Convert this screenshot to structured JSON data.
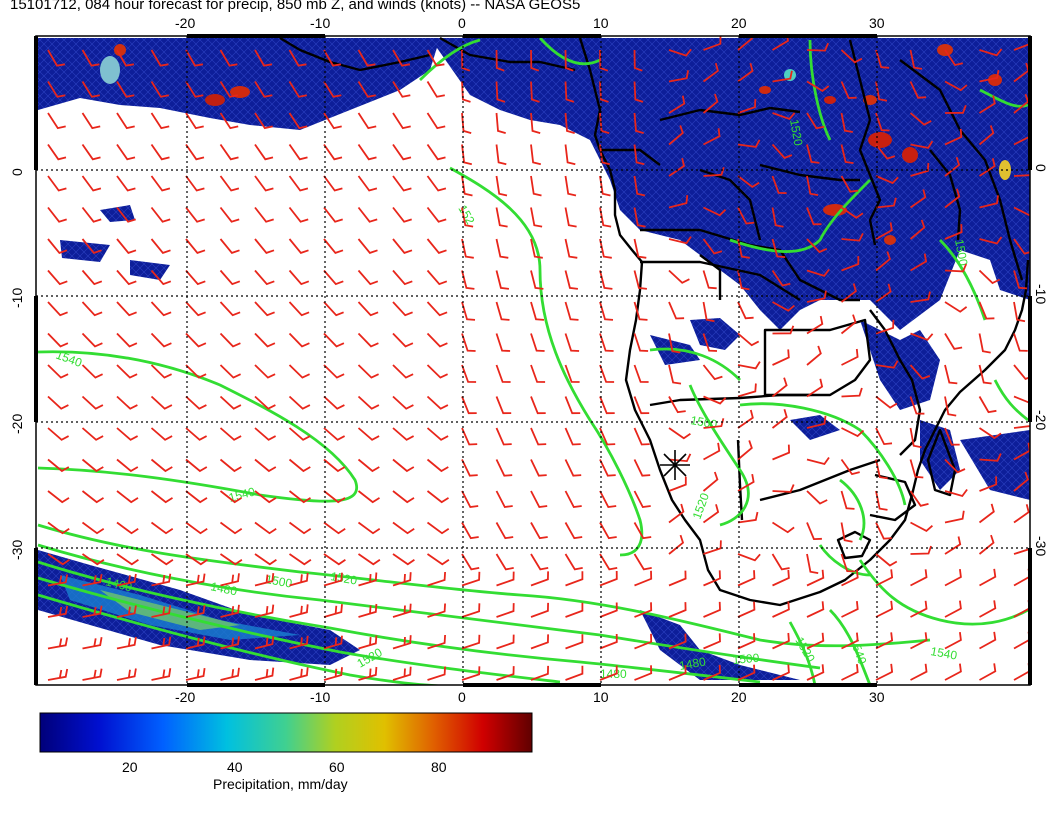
{
  "title": "15101712, 084 hour forecast for precip, 850 mb Z, and winds (knots) -- NASA GEOS5",
  "map": {
    "lon_ticks": [
      "-20",
      "-10",
      "0",
      "10",
      "20",
      "30"
    ],
    "lat_ticks": [
      "0",
      "-10",
      "-20",
      "-30"
    ],
    "contour_labels": [
      "1540",
      "152",
      "1540",
      "1520",
      "1500",
      "1480",
      "1460",
      "1520",
      "1500",
      "1520",
      "1480",
      "1500",
      "1520",
      "1540",
      "1540",
      "1520",
      "1480",
      "1500"
    ],
    "colors": {
      "precip_low": "#0b1a8c",
      "precip_high": "#8b0000",
      "wind_barbs": "#e8261b",
      "height_contours": "#33dd33",
      "coastlines": "#000000",
      "grid": "#000000"
    }
  },
  "colorbar": {
    "title": "Precipitation, mm/day",
    "ticks": [
      "20",
      "40",
      "60",
      "80"
    ]
  }
}
